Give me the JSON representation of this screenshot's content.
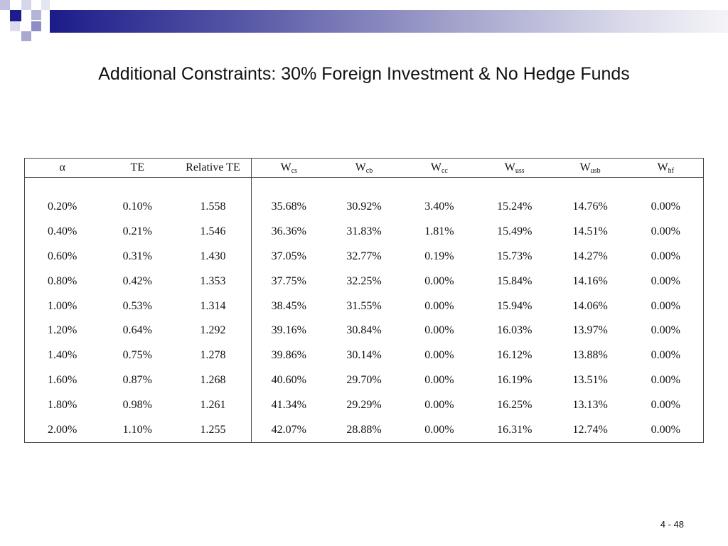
{
  "slide": {
    "title": "Additional Constraints: 30% Foreign Investment & No Hedge Funds",
    "page_number": "4 - 48"
  },
  "table": {
    "headers": [
      {
        "main": "α",
        "sub": ""
      },
      {
        "main": "TE",
        "sub": ""
      },
      {
        "main": "Relative TE",
        "sub": ""
      },
      {
        "main": "W",
        "sub": "cs"
      },
      {
        "main": "W",
        "sub": "cb"
      },
      {
        "main": "W",
        "sub": "cc"
      },
      {
        "main": "W",
        "sub": "uss"
      },
      {
        "main": "W",
        "sub": "usb"
      },
      {
        "main": "W",
        "sub": "hf"
      }
    ],
    "rows": [
      [
        "0.20%",
        "0.10%",
        "1.558",
        "35.68%",
        "30.92%",
        "3.40%",
        "15.24%",
        "14.76%",
        "0.00%"
      ],
      [
        "0.40%",
        "0.21%",
        "1.546",
        "36.36%",
        "31.83%",
        "1.81%",
        "15.49%",
        "14.51%",
        "0.00%"
      ],
      [
        "0.60%",
        "0.31%",
        "1.430",
        "37.05%",
        "32.77%",
        "0.19%",
        "15.73%",
        "14.27%",
        "0.00%"
      ],
      [
        "0.80%",
        "0.42%",
        "1.353",
        "37.75%",
        "32.25%",
        "0.00%",
        "15.84%",
        "14.16%",
        "0.00%"
      ],
      [
        "1.00%",
        "0.53%",
        "1.314",
        "38.45%",
        "31.55%",
        "0.00%",
        "15.94%",
        "14.06%",
        "0.00%"
      ],
      [
        "1.20%",
        "0.64%",
        "1.292",
        "39.16%",
        "30.84%",
        "0.00%",
        "16.03%",
        "13.97%",
        "0.00%"
      ],
      [
        "1.40%",
        "0.75%",
        "1.278",
        "39.86%",
        "30.14%",
        "0.00%",
        "16.12%",
        "13.88%",
        "0.00%"
      ],
      [
        "1.60%",
        "0.87%",
        "1.268",
        "40.60%",
        "29.70%",
        "0.00%",
        "16.19%",
        "13.51%",
        "0.00%"
      ],
      [
        "1.80%",
        "0.98%",
        "1.261",
        "41.34%",
        "29.29%",
        "0.00%",
        "16.25%",
        "13.13%",
        "0.00%"
      ],
      [
        "2.00%",
        "1.10%",
        "1.255",
        "42.07%",
        "28.88%",
        "0.00%",
        "16.31%",
        "12.74%",
        "0.00%"
      ]
    ]
  },
  "colors": {
    "accent_dark": "#1c1c8a",
    "accent_mid": "#6a6ab0",
    "accent_light": "#b9b9d9"
  }
}
